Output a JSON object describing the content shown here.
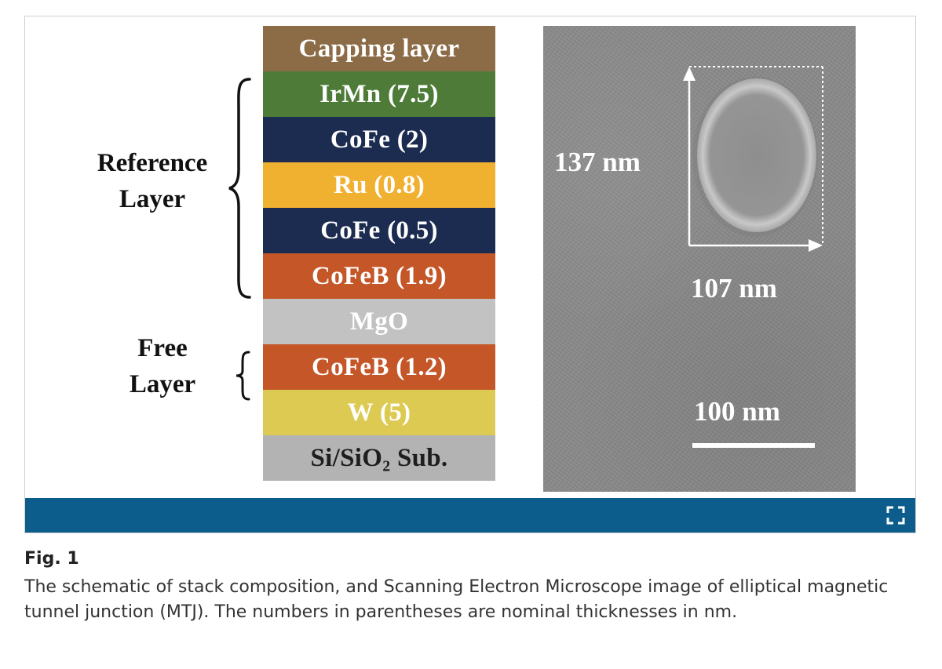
{
  "figure": {
    "stack_layers": [
      {
        "label": "Capping layer",
        "color": "#8c6b47"
      },
      {
        "label": "IrMn (7.5)",
        "color": "#4e7c38"
      },
      {
        "label": "CoFe (2)",
        "color": "#1c2c50"
      },
      {
        "label": "Ru (0.8)",
        "color": "#f0b030"
      },
      {
        "label": "CoFe (0.5)",
        "color": "#1c2c50"
      },
      {
        "label": "CoFeB (1.9)",
        "color": "#c45628"
      },
      {
        "label": "MgO",
        "color": "#c2c2c2"
      },
      {
        "label": "CoFeB (1.2)",
        "color": "#c45628"
      },
      {
        "label": "W (5)",
        "color": "#dcca52"
      },
      {
        "label": "Si/SiO₂ Sub.",
        "color": "#b3b3b3"
      }
    ],
    "reference_layer_label": [
      "Reference",
      "Layer"
    ],
    "free_layer_label": [
      "Free",
      "Layer"
    ],
    "sem": {
      "height_label": "137 nm",
      "width_label": "107 nm",
      "scale_label": "100 nm"
    },
    "bar_color": "#0c5c8c",
    "expand_icon": "expand-icon"
  },
  "caption": {
    "title": "Fig. 1",
    "text": "The schematic of stack composition, and Scanning Electron Microscope image of elliptical magnetic tunnel junction (MTJ). The numbers in parentheses are nominal thicknesses in nm."
  }
}
